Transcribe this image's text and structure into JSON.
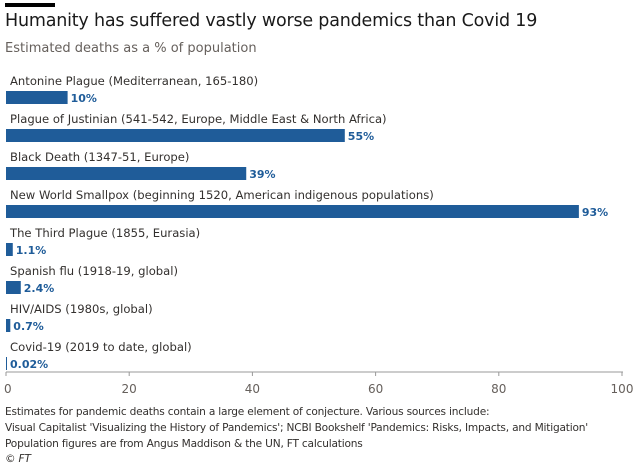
{
  "header": {
    "title": "Humanity has suffered vastly worse pandemics than Covid 19",
    "subtitle": "Estimated deaths as a % of population"
  },
  "chart_data": {
    "type": "bar",
    "orientation": "horizontal",
    "title": "Humanity has suffered vastly worse pandemics than Covid 19",
    "subtitle": "Estimated deaths as a % of population",
    "categories": [
      "Antonine Plague (Mediterranean, 165-180)",
      "Plague of Justinian (541-542, Europe, Middle East & North Africa)",
      "Black Death (1347-51, Europe)",
      "New World Smallpox (beginning 1520, American indigenous populations)",
      "The Third Plague (1855, Eurasia)",
      "Spanish flu (1918-19, global)",
      "HIV/AIDS (1980s, global)",
      "Covid-19 (2019 to date, global)"
    ],
    "values": [
      10,
      55,
      39,
      93,
      1.1,
      2.4,
      0.7,
      0.02
    ],
    "value_labels": [
      "10%",
      "55%",
      "39%",
      "93%",
      "1.1%",
      "2.4%",
      "0.7%",
      "0.02%"
    ],
    "xlim": [
      0,
      100
    ],
    "xticks": [
      0,
      20,
      40,
      60,
      80,
      100
    ],
    "xlabel": "",
    "ylabel": "",
    "grid": false,
    "colors": {
      "bar": "#1f5c99",
      "label": "#1f5c99",
      "axis": "#999999",
      "text": "#33302e"
    }
  },
  "notes": [
    "Estimates for pandemic deaths contain a large element of conjecture. Various sources include:",
    "Visual Capitalist 'Visualizing the History of Pandemics'; NCBI Bookshelf 'Pandemics: Risks, Impacts, and Mitigation'",
    "Population figures are from Angus Maddison & the UN, FT calculations"
  ],
  "copyright": "© FT"
}
